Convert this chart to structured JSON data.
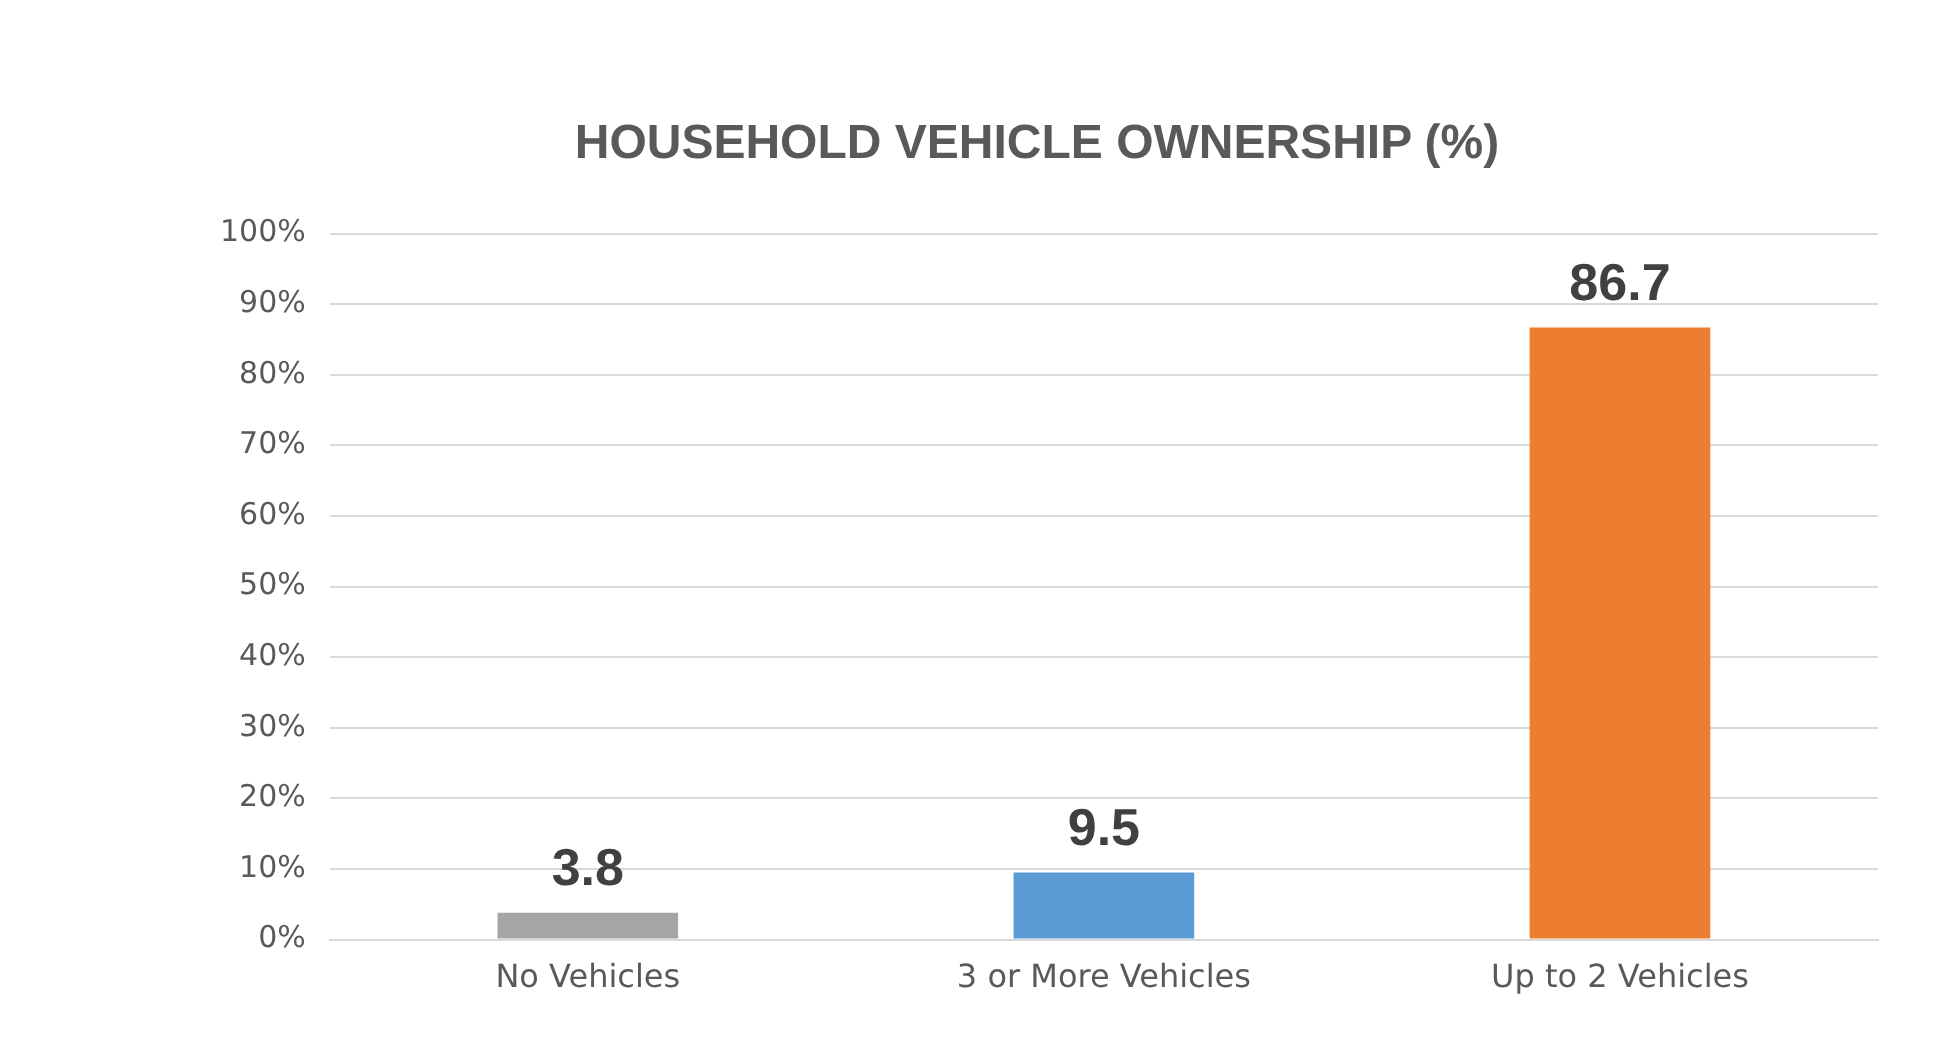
{
  "chart_data": {
    "type": "bar",
    "title": "HOUSEHOLD VEHICLE OWNERSHIP (%)",
    "categories": [
      "No Vehicles",
      "3 or More Vehicles",
      "Up to 2 Vehicles"
    ],
    "values": [
      3.8,
      9.5,
      86.7
    ],
    "colors": [
      "#a5a5a5",
      "#5b9bd5",
      "#ed7d31"
    ],
    "ylim": [
      0,
      100
    ],
    "yticks": [
      {
        "value": 0,
        "label": "0%"
      },
      {
        "value": 10,
        "label": "10%"
      },
      {
        "value": 20,
        "label": "20%"
      },
      {
        "value": 30,
        "label": "30%"
      },
      {
        "value": 40,
        "label": "40%"
      },
      {
        "value": 50,
        "label": "50%"
      },
      {
        "value": 60,
        "label": "60%"
      },
      {
        "value": 70,
        "label": "70%"
      },
      {
        "value": 80,
        "label": "80%"
      },
      {
        "value": 90,
        "label": "90%"
      },
      {
        "value": 100,
        "label": "100%"
      }
    ],
    "grid": "y",
    "legend": false,
    "data_labels": true
  }
}
